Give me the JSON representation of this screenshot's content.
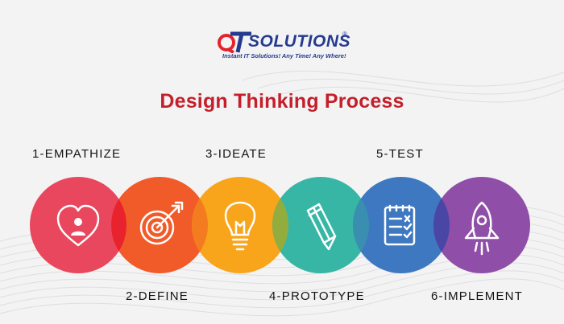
{
  "logo": {
    "name": "SOLUTIONS",
    "registered": "®",
    "tagline": "Instant IT Solutions! Any Time! Any Where!"
  },
  "title": "Design Thinking Process",
  "steps": [
    {
      "label": "1-EMPATHIZE",
      "color": "#e8475d",
      "icon": "heart-person-icon"
    },
    {
      "label": "2-DEFINE",
      "color": "#f15b2a",
      "icon": "target-arrow-icon"
    },
    {
      "label": "3-IDEATE",
      "color": "#f8a51c",
      "icon": "lightbulb-icon"
    },
    {
      "label": "4-PROTOTYPE",
      "color": "#37b6a6",
      "icon": "pencil-icon"
    },
    {
      "label": "5-TEST",
      "color": "#3d78c1",
      "icon": "checklist-icon"
    },
    {
      "label": "6-IMPLEMENT",
      "color": "#8f4fa8",
      "icon": "rocket-icon"
    }
  ],
  "colors": {
    "title": "#c41f2a",
    "brand": "#253a8f",
    "overlap_1_2": "#e8232e",
    "overlap_2_3": "#f47c20",
    "overlap_3_4": "#93ac3e",
    "overlap_4_5": "#3a8fb0",
    "overlap_5_6": "#4a46a5"
  }
}
